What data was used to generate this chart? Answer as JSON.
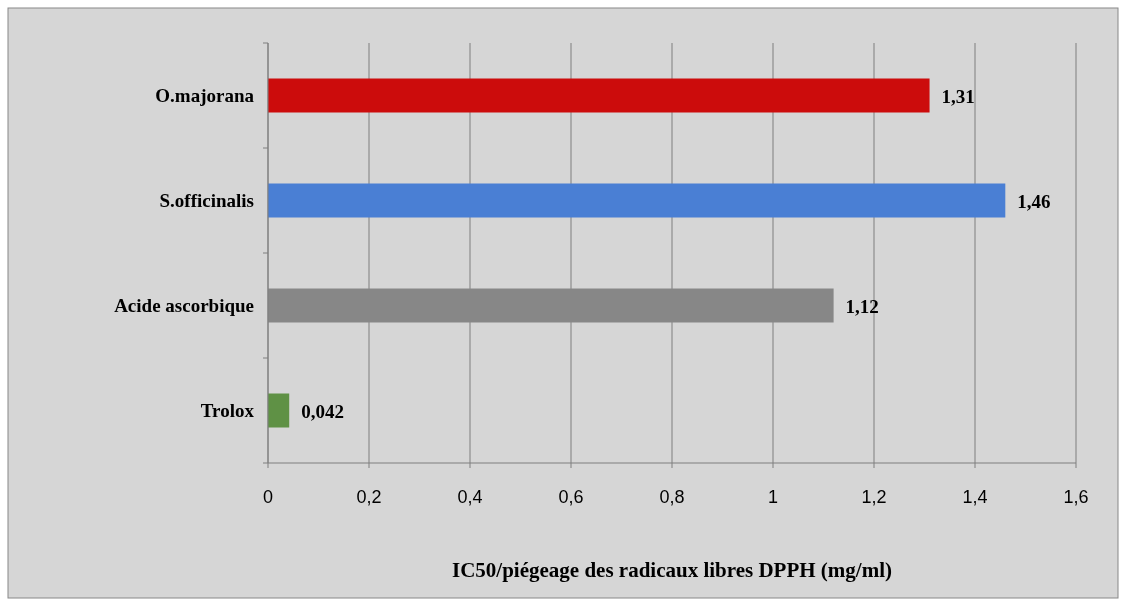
{
  "chart_data": {
    "type": "bar",
    "orientation": "horizontal",
    "xlabel": "IC50/piégeage des radicaux libres DPPH (mg/ml)",
    "categories": [
      "O.majorana",
      "S.officinalis",
      "Acide ascorbique",
      "Trolox"
    ],
    "values": [
      1.31,
      1.46,
      1.12,
      0.042
    ],
    "colors": [
      "#cc0c0c",
      "#4a7fd4",
      "#878787",
      "#5f9145"
    ],
    "value_labels": [
      "1,31",
      "1,46",
      "1,12",
      "0,042"
    ],
    "xlim": [
      0,
      1.6
    ],
    "xticks": [
      0,
      {
        "value": 0.2,
        "label": "0,2"
      },
      {
        "value": 0.4,
        "label": "0,4"
      },
      {
        "value": 0.6,
        "label": "0,6"
      },
      {
        "value": 0.8,
        "label": "0,8"
      },
      1,
      {
        "value": 1.2,
        "label": "1,2"
      },
      {
        "value": 1.4,
        "label": "1,4"
      },
      {
        "value": 1.6,
        "label": "1,6"
      }
    ],
    "grid": "x"
  }
}
